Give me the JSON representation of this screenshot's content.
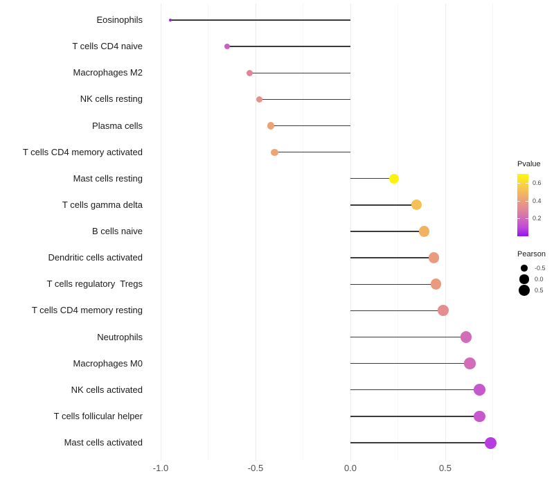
{
  "chart_data": {
    "type": "scatter",
    "variant": "lollipop",
    "title": "",
    "xlabel": "",
    "ylabel": "",
    "grid": "vertical-major-and-minor",
    "legend_position": "right",
    "xlim": [
      -1.05,
      0.83
    ],
    "x_ticks": [
      -1.0,
      -0.5,
      0.0,
      0.5
    ],
    "x_tick_labels": [
      "-1.0",
      "-0.5",
      "0.0",
      "0.5"
    ],
    "x_minor_ticks": [
      -0.75,
      -0.25,
      0.25,
      0.75
    ],
    "categories": [
      "Eosinophils",
      "T cells CD4 naive",
      "Macrophages M2",
      "NK cells resting",
      "Plasma cells",
      "T cells CD4 memory activated",
      "Mast cells resting",
      "T cells gamma delta",
      "B cells naive",
      "Dendritic cells activated",
      "T cells regulatory  Tregs",
      "T cells CD4 memory resting",
      "Neutrophils",
      "Macrophages M0",
      "NK cells activated",
      "T cells follicular helper",
      "Mast cells activated"
    ],
    "series": [
      {
        "name": "Pearson",
        "values": [
          -0.95,
          -0.65,
          -0.53,
          -0.48,
          -0.42,
          -0.4,
          0.23,
          0.35,
          0.39,
          0.44,
          0.45,
          0.49,
          0.61,
          0.63,
          0.68,
          0.68,
          0.74
        ]
      },
      {
        "name": "Pvalue",
        "values": [
          0.02,
          0.16,
          0.29,
          0.34,
          0.41,
          0.42,
          0.68,
          0.52,
          0.47,
          0.38,
          0.38,
          0.33,
          0.2,
          0.2,
          0.14,
          0.14,
          0.08
        ]
      }
    ],
    "stem_origin_x": 0.0
  },
  "legend": {
    "pvalue": {
      "title": "Pvalue",
      "range": [
        0.0,
        0.7
      ],
      "tick_labels": [
        "0.6",
        "0.4",
        "0.2"
      ],
      "tick_values": [
        0.6,
        0.4,
        0.2
      ],
      "gradient_stops": [
        {
          "p": 0.0,
          "color": "#9214F0"
        },
        {
          "p": 0.1,
          "color": "#BE4AD9"
        },
        {
          "p": 0.2,
          "color": "#D26BB8"
        },
        {
          "p": 0.3,
          "color": "#E18798"
        },
        {
          "p": 0.4,
          "color": "#EC9F79"
        },
        {
          "p": 0.5,
          "color": "#F4BA5B"
        },
        {
          "p": 0.6,
          "color": "#F9D83E"
        },
        {
          "p": 0.7,
          "color": "#FEF900"
        }
      ]
    },
    "pearson": {
      "title": "Pearson",
      "entries": [
        {
          "label": "-0.5",
          "value": -0.5
        },
        {
          "label": "0.0",
          "value": 0.0
        },
        {
          "label": "0.5",
          "value": 0.5
        }
      ],
      "dot_color": "#000000"
    }
  },
  "style": {
    "background": "#ffffff",
    "stem_color": "#3a3a3a",
    "grid_major_color": "#ececec",
    "grid_minor_color": "#f6f6f6",
    "axis_text_color": "#4d4d4d",
    "category_text_color": "#1a1a1a",
    "size_range": [
      -0.95,
      0.74
    ]
  }
}
